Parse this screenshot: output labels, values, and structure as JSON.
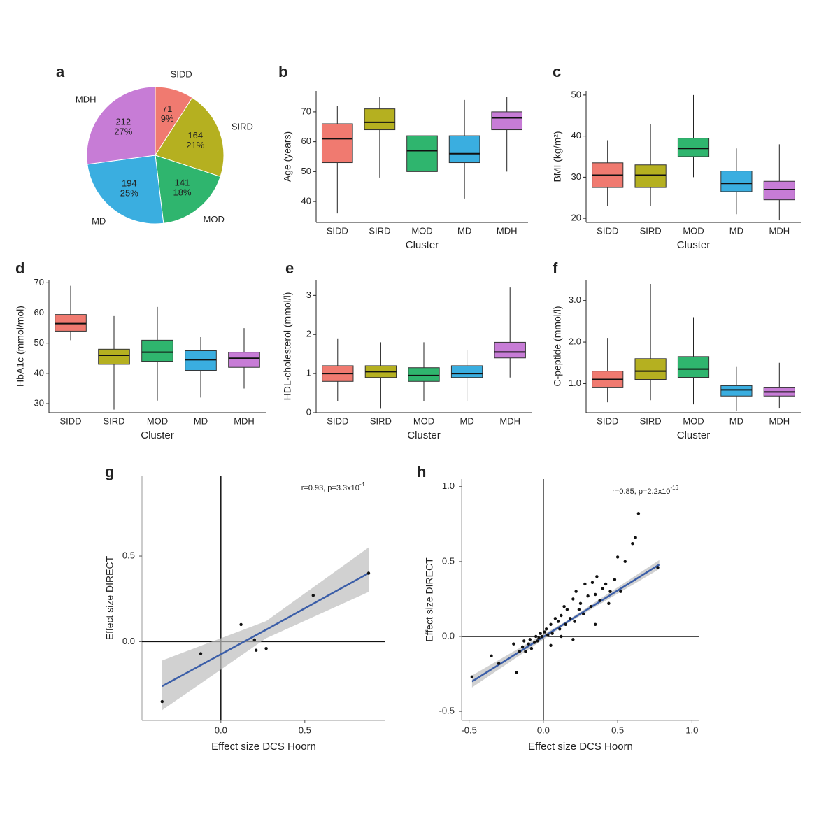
{
  "chart_data": [
    {
      "type": "pie",
      "title": "a",
      "categories": [
        "SIDD",
        "SIRD",
        "MOD",
        "MD",
        "MDH"
      ],
      "values": [
        71,
        164,
        141,
        194,
        212
      ],
      "shares": [
        9,
        21,
        18,
        25,
        27
      ],
      "share_labels": [
        "9%",
        "21%",
        "18%",
        "25%",
        "27%"
      ],
      "colors": [
        "#f07a70",
        "#b5b020",
        "#2fb56e",
        "#3aaee0",
        "#c77cd6"
      ]
    },
    {
      "type": "box",
      "title": "b",
      "ylabel": "Age (years)",
      "xlabel": "Cluster",
      "categories": [
        "SIDD",
        "SIRD",
        "MOD",
        "MD",
        "MDH"
      ],
      "colors": [
        "#f07a70",
        "#b5b020",
        "#2fb56e",
        "#3aaee0",
        "#c77cd6"
      ],
      "ylim": [
        33,
        77
      ],
      "yticks": [
        40,
        50,
        60,
        70
      ],
      "whisker_low": [
        36,
        48,
        35,
        41,
        50
      ],
      "q1": [
        53,
        64,
        50,
        53,
        64
      ],
      "median": [
        61,
        66.5,
        57,
        56,
        68
      ],
      "q3": [
        66,
        71,
        62,
        62,
        70
      ],
      "whisker_high": [
        72,
        75,
        74,
        74,
        75
      ]
    },
    {
      "type": "box",
      "title": "c",
      "ylabel": "BMI (kg/m²)",
      "xlabel": "Cluster",
      "categories": [
        "SIDD",
        "SIRD",
        "MOD",
        "MD",
        "MDH"
      ],
      "colors": [
        "#f07a70",
        "#b5b020",
        "#2fb56e",
        "#3aaee0",
        "#c77cd6"
      ],
      "ylim": [
        19,
        51
      ],
      "yticks": [
        20,
        30,
        40,
        50
      ],
      "whisker_low": [
        23,
        23,
        30,
        21,
        19.5
      ],
      "q1": [
        27.5,
        27.5,
        35,
        26.5,
        24.5
      ],
      "median": [
        30.5,
        30.5,
        37,
        28.5,
        27
      ],
      "q3": [
        33.5,
        33,
        39.5,
        31.5,
        29
      ],
      "whisker_high": [
        39,
        43,
        50,
        37,
        38
      ]
    },
    {
      "type": "box",
      "title": "d",
      "ylabel": "HbA1c (mmol/mol)",
      "xlabel": "Cluster",
      "categories": [
        "SIDD",
        "SIRD",
        "MOD",
        "MD",
        "MDH"
      ],
      "colors": [
        "#f07a70",
        "#b5b020",
        "#2fb56e",
        "#3aaee0",
        "#c77cd6"
      ],
      "ylim": [
        27,
        71
      ],
      "yticks": [
        30,
        40,
        50,
        60,
        70
      ],
      "whisker_low": [
        51,
        28,
        31,
        32,
        35
      ],
      "q1": [
        54,
        43,
        44,
        41,
        42
      ],
      "median": [
        56.5,
        46,
        47,
        44.5,
        45
      ],
      "q3": [
        59.5,
        48,
        51,
        47.5,
        47
      ],
      "whisker_high": [
        69,
        59,
        62,
        52,
        55
      ]
    },
    {
      "type": "box",
      "title": "e",
      "ylabel": "HDL-cholesterol (mmol/l)",
      "xlabel": "Cluster",
      "categories": [
        "SIDD",
        "SIRD",
        "MOD",
        "MD",
        "MDH"
      ],
      "colors": [
        "#f07a70",
        "#b5b020",
        "#2fb56e",
        "#3aaee0",
        "#c77cd6"
      ],
      "ylim": [
        0,
        3.4
      ],
      "yticks": [
        0,
        1,
        2,
        3
      ],
      "whisker_low": [
        0.3,
        0.1,
        0.3,
        0.3,
        0.9
      ],
      "q1": [
        0.8,
        0.9,
        0.8,
        0.9,
        1.4
      ],
      "median": [
        1.0,
        1.05,
        0.95,
        1.0,
        1.55
      ],
      "q3": [
        1.2,
        1.2,
        1.15,
        1.2,
        1.8
      ],
      "whisker_high": [
        1.9,
        1.8,
        1.8,
        1.6,
        3.2
      ]
    },
    {
      "type": "box",
      "title": "f",
      "ylabel": "C-peptide (mmol/l)",
      "xlabel": "Cluster",
      "categories": [
        "SIDD",
        "SIRD",
        "MOD",
        "MD",
        "MDH"
      ],
      "colors": [
        "#f07a70",
        "#b5b020",
        "#2fb56e",
        "#3aaee0",
        "#c77cd6"
      ],
      "ylim": [
        0.3,
        3.5
      ],
      "yticks": [
        {
          "value": 1,
          "label": "1.0"
        },
        {
          "value": 2,
          "label": "2.0"
        },
        {
          "value": 3,
          "label": "3.0"
        }
      ],
      "whisker_low": [
        0.55,
        0.6,
        0.5,
        0.35,
        0.4
      ],
      "q1": [
        0.9,
        1.1,
        1.15,
        0.7,
        0.7
      ],
      "median": [
        1.1,
        1.3,
        1.35,
        0.85,
        0.8
      ],
      "q3": [
        1.3,
        1.6,
        1.65,
        0.95,
        0.9
      ],
      "whisker_high": [
        2.1,
        3.4,
        2.6,
        1.4,
        1.5
      ]
    },
    {
      "type": "scatter",
      "title": "g",
      "xlabel": "Effect size DCS Hoorn",
      "ylabel": "Effect size DIRECT",
      "annotation": {
        "text": "r=0.93, p=3.3x10",
        "exponent": "-4"
      },
      "xlim": [
        -0.47,
        0.98
      ],
      "ylim": [
        -0.46,
        0.97
      ],
      "xticks": [
        {
          "value": 0,
          "label": "0.0"
        },
        {
          "value": 0.5,
          "label": "0.5"
        }
      ],
      "yticks": [
        {
          "value": 0,
          "label": "0.0"
        },
        {
          "value": 0.5,
          "label": "0.5"
        }
      ],
      "x": [
        -0.35,
        -0.12,
        0.12,
        0.2,
        0.21,
        0.27,
        0.55,
        0.88
      ],
      "y": [
        -0.35,
        -0.07,
        0.1,
        0.01,
        -0.05,
        -0.04,
        0.27,
        0.4
      ],
      "fit": {
        "x": [
          -0.35,
          0.27,
          0.88
        ],
        "y": [
          -0.26,
          0.07,
          0.4
        ],
        "low": [
          -0.4,
          0.02,
          0.29
        ],
        "high": [
          -0.11,
          0.12,
          0.55
        ]
      },
      "color": "#3b5ea8"
    },
    {
      "type": "scatter",
      "title": "h",
      "xlabel": "Effect size DCS Hoorn",
      "ylabel": "Effect size DIRECT",
      "annotation": {
        "text": "r=0.85, p=2.2x10",
        "exponent": "-16"
      },
      "xlim": [
        -0.55,
        1.05
      ],
      "ylim": [
        -0.56,
        1.05
      ],
      "xticks": [
        -0.5,
        {
          "value": 0,
          "label": "0.0"
        },
        0.5,
        {
          "value": 1,
          "label": "1.0"
        }
      ],
      "yticks": [
        -0.5,
        {
          "value": 0,
          "label": "0.0"
        },
        0.5,
        {
          "value": 1,
          "label": "1.0"
        }
      ],
      "x": [
        -0.48,
        -0.35,
        -0.3,
        -0.2,
        -0.18,
        -0.16,
        -0.14,
        -0.13,
        -0.12,
        -0.1,
        -0.09,
        -0.08,
        -0.06,
        -0.05,
        -0.04,
        -0.03,
        -0.02,
        -0.01,
        0.01,
        0.02,
        0.03,
        0.05,
        0.06,
        0.08,
        0.1,
        0.11,
        0.12,
        0.14,
        0.15,
        0.16,
        0.18,
        0.2,
        0.21,
        0.22,
        0.24,
        0.25,
        0.27,
        0.28,
        0.3,
        0.32,
        0.33,
        0.35,
        0.36,
        0.38,
        0.4,
        0.42,
        0.44,
        0.45,
        0.48,
        0.5,
        0.52,
        0.55,
        0.6,
        0.62,
        0.64,
        0.77,
        0.05,
        0.12,
        0.2,
        0.35
      ],
      "y": [
        -0.27,
        -0.13,
        -0.18,
        -0.05,
        -0.24,
        -0.1,
        -0.07,
        -0.03,
        -0.1,
        -0.05,
        -0.02,
        -0.08,
        -0.04,
        0.0,
        -0.03,
        -0.01,
        0.02,
        0.0,
        0.03,
        0.05,
        0.01,
        0.08,
        0.02,
        0.12,
        0.1,
        0.05,
        0.14,
        0.2,
        0.08,
        0.18,
        0.12,
        0.25,
        0.1,
        0.3,
        0.18,
        0.22,
        0.15,
        0.35,
        0.27,
        0.2,
        0.36,
        0.28,
        0.4,
        0.24,
        0.32,
        0.35,
        0.22,
        0.3,
        0.38,
        0.53,
        0.3,
        0.5,
        0.62,
        0.66,
        0.82,
        0.46,
        -0.06,
        0.0,
        -0.02,
        0.08
      ],
      "fit": {
        "x": [
          -0.48,
          0.15,
          0.78
        ],
        "y": [
          -0.3,
          0.09,
          0.48
        ],
        "low": [
          -0.34,
          0.08,
          0.45
        ],
        "high": [
          -0.26,
          0.1,
          0.51
        ]
      },
      "color": "#3b5ea8"
    }
  ]
}
